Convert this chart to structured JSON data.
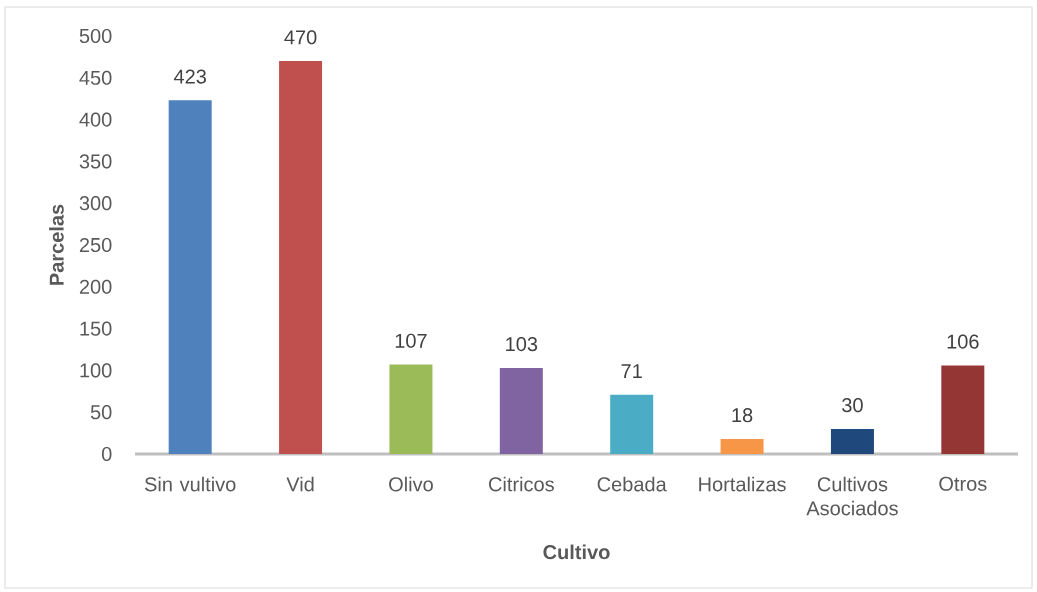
{
  "chart_data": {
    "type": "bar",
    "xlabel": "Cultivo",
    "ylabel": "Parcelas",
    "categories": [
      "Sin vultivo",
      "Vid",
      "Olivo",
      "Citricos",
      "Cebada",
      "Hortalizas",
      "Cultivos Asociados",
      "Otros"
    ],
    "values": [
      423,
      470,
      107,
      103,
      71,
      18,
      30,
      106
    ],
    "colors": [
      "#4f81bd",
      "#c0504d",
      "#9bbb59",
      "#8064a2",
      "#4bacc6",
      "#f79646",
      "#1f497d",
      "#943634"
    ],
    "ylim": [
      0,
      500
    ],
    "yticks": [
      0,
      50,
      100,
      150,
      200,
      250,
      300,
      350,
      400,
      450,
      500
    ],
    "data_labels": true
  }
}
